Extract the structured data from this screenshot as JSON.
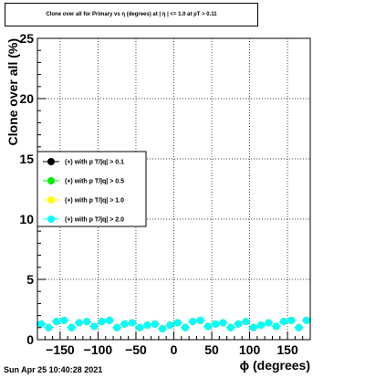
{
  "timestamp": "Sun Apr 25 10:40:28 2021",
  "chart_data": {
    "type": "scatter",
    "title": "Clone  over all for Primary vs η (degrees) at | η | <= 1.0 at pT > 0.11",
    "xlabel": "ϕ (degrees)",
    "ylabel": "Clone  over all (%)",
    "xlim": [
      -180,
      180
    ],
    "ylim": [
      0,
      25
    ],
    "xticks": [
      -150,
      -100,
      -50,
      0,
      50,
      100,
      150
    ],
    "xtick_labels": [
      "−150",
      "−100",
      "−50",
      "0",
      "50",
      "100",
      "150"
    ],
    "yticks": [
      0,
      5,
      10,
      15,
      20,
      25
    ],
    "ytick_labels": [
      "0",
      "5",
      "10",
      "15",
      "20",
      "25"
    ],
    "grid": true,
    "legend_position": "left",
    "x": [
      -175,
      -165,
      -155,
      -145,
      -135,
      -125,
      -115,
      -105,
      -95,
      -85,
      -75,
      -65,
      -55,
      -45,
      -35,
      -25,
      -15,
      -5,
      5,
      15,
      25,
      35,
      45,
      55,
      65,
      75,
      85,
      95,
      105,
      115,
      125,
      135,
      145,
      155,
      165,
      175
    ],
    "series": [
      {
        "name": "(+) with p T/|q| > 0.1",
        "color": "#000000",
        "values": [
          1.3,
          1.0,
          1.5,
          1.6,
          1.0,
          1.4,
          1.5,
          1.1,
          1.5,
          1.6,
          1.0,
          1.3,
          1.4,
          1.0,
          1.2,
          1.3,
          0.9,
          1.2,
          1.4,
          1.0,
          1.5,
          1.6,
          1.1,
          1.3,
          1.4,
          1.0,
          1.3,
          1.5,
          1.0,
          1.2,
          1.4,
          1.1,
          1.5,
          1.6,
          1.0,
          1.6
        ]
      },
      {
        "name": "(+) with p T/|q| > 0.5",
        "color": "#00ee00",
        "values": [
          1.3,
          1.0,
          1.5,
          1.6,
          1.0,
          1.4,
          1.5,
          1.1,
          1.5,
          1.6,
          1.0,
          1.3,
          1.4,
          1.0,
          1.2,
          1.3,
          0.9,
          1.2,
          1.4,
          1.0,
          1.5,
          1.6,
          1.1,
          1.3,
          1.4,
          1.0,
          1.3,
          1.5,
          1.0,
          1.2,
          1.4,
          1.1,
          1.5,
          1.6,
          1.0,
          1.6
        ]
      },
      {
        "name": "(+) with p T/|q| > 1.0",
        "color": "#ffff00",
        "values": [
          1.3,
          1.0,
          1.5,
          1.6,
          1.0,
          1.4,
          1.5,
          1.1,
          1.5,
          1.6,
          1.0,
          1.3,
          1.4,
          1.0,
          1.2,
          1.3,
          0.9,
          1.2,
          1.4,
          1.0,
          1.5,
          1.6,
          1.1,
          1.3,
          1.4,
          1.0,
          1.3,
          1.5,
          1.0,
          1.2,
          1.4,
          1.1,
          1.5,
          1.6,
          1.0,
          1.6
        ]
      },
      {
        "name": "(+) with p T/|q| > 2.0",
        "color": "#00ffff",
        "values": [
          1.3,
          1.0,
          1.5,
          1.6,
          1.0,
          1.4,
          1.5,
          1.1,
          1.5,
          1.6,
          1.0,
          1.3,
          1.4,
          1.0,
          1.2,
          1.3,
          0.9,
          1.2,
          1.4,
          1.0,
          1.5,
          1.6,
          1.1,
          1.3,
          1.4,
          1.0,
          1.3,
          1.5,
          1.0,
          1.2,
          1.4,
          1.1,
          1.5,
          1.6,
          1.0,
          1.6
        ]
      }
    ]
  }
}
